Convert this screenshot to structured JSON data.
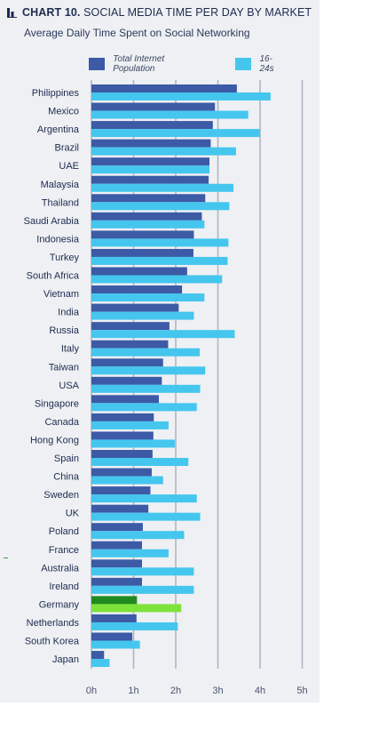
{
  "header": {
    "title_bold": "CHART 10.",
    "title_rest": "SOCIAL MEDIA TIME PER DAY BY MARKET",
    "subtitle": "Average Daily Time Spent on Social Networking"
  },
  "colors": {
    "series1": "#3c5aa6",
    "series2": "#45c6ee",
    "highlight1": "#1f8a1f",
    "highlight2": "#7de33a",
    "grid": "#a9b4c2",
    "label": "#1d2b4f"
  },
  "chart_data": {
    "type": "bar",
    "orientation": "horizontal",
    "title": "CHART 10. SOCIAL MEDIA TIME PER DAY BY MARKET",
    "subtitle": "Average Daily Time Spent on Social Networking",
    "legend_position": "top",
    "grid": true,
    "xlim": [
      0,
      5
    ],
    "x_ticks": [
      0,
      1,
      2,
      3,
      4,
      5
    ],
    "x_tick_labels": [
      "0h",
      "1h",
      "2h",
      "3h",
      "4h",
      "5h"
    ],
    "highlighted_category": "Germany",
    "categories": [
      "Philippines",
      "Mexico",
      "Argentina",
      "Brazil",
      "UAE",
      "Malaysia",
      "Thailand",
      "Saudi Arabia",
      "Indonesia",
      "Turkey",
      "South Africa",
      "Vietnam",
      "India",
      "Russia",
      "Italy",
      "Taiwan",
      "USA",
      "Singapore",
      "Canada",
      "Hong Kong",
      "Spain",
      "China",
      "Sweden",
      "UK",
      "Poland",
      "France",
      "Australia",
      "Ireland",
      "Germany",
      "Netherlands",
      "South Korea",
      "Japan"
    ],
    "series": [
      {
        "name": "Total Internet Population",
        "values": [
          3.45,
          2.93,
          2.88,
          2.83,
          2.8,
          2.78,
          2.7,
          2.62,
          2.43,
          2.42,
          2.27,
          2.15,
          2.07,
          1.85,
          1.82,
          1.7,
          1.67,
          1.6,
          1.48,
          1.47,
          1.45,
          1.43,
          1.4,
          1.35,
          1.22,
          1.2,
          1.2,
          1.2,
          1.08,
          1.07,
          0.97,
          0.3
        ]
      },
      {
        "name": "16-24s",
        "values": [
          4.25,
          3.72,
          4.0,
          3.43,
          2.8,
          3.37,
          3.27,
          2.68,
          3.25,
          3.23,
          3.1,
          2.68,
          2.43,
          3.4,
          2.57,
          2.7,
          2.58,
          2.5,
          1.83,
          1.98,
          2.3,
          1.7,
          2.5,
          2.58,
          2.2,
          1.83,
          2.43,
          2.43,
          2.13,
          2.05,
          1.15,
          0.43
        ]
      }
    ]
  }
}
